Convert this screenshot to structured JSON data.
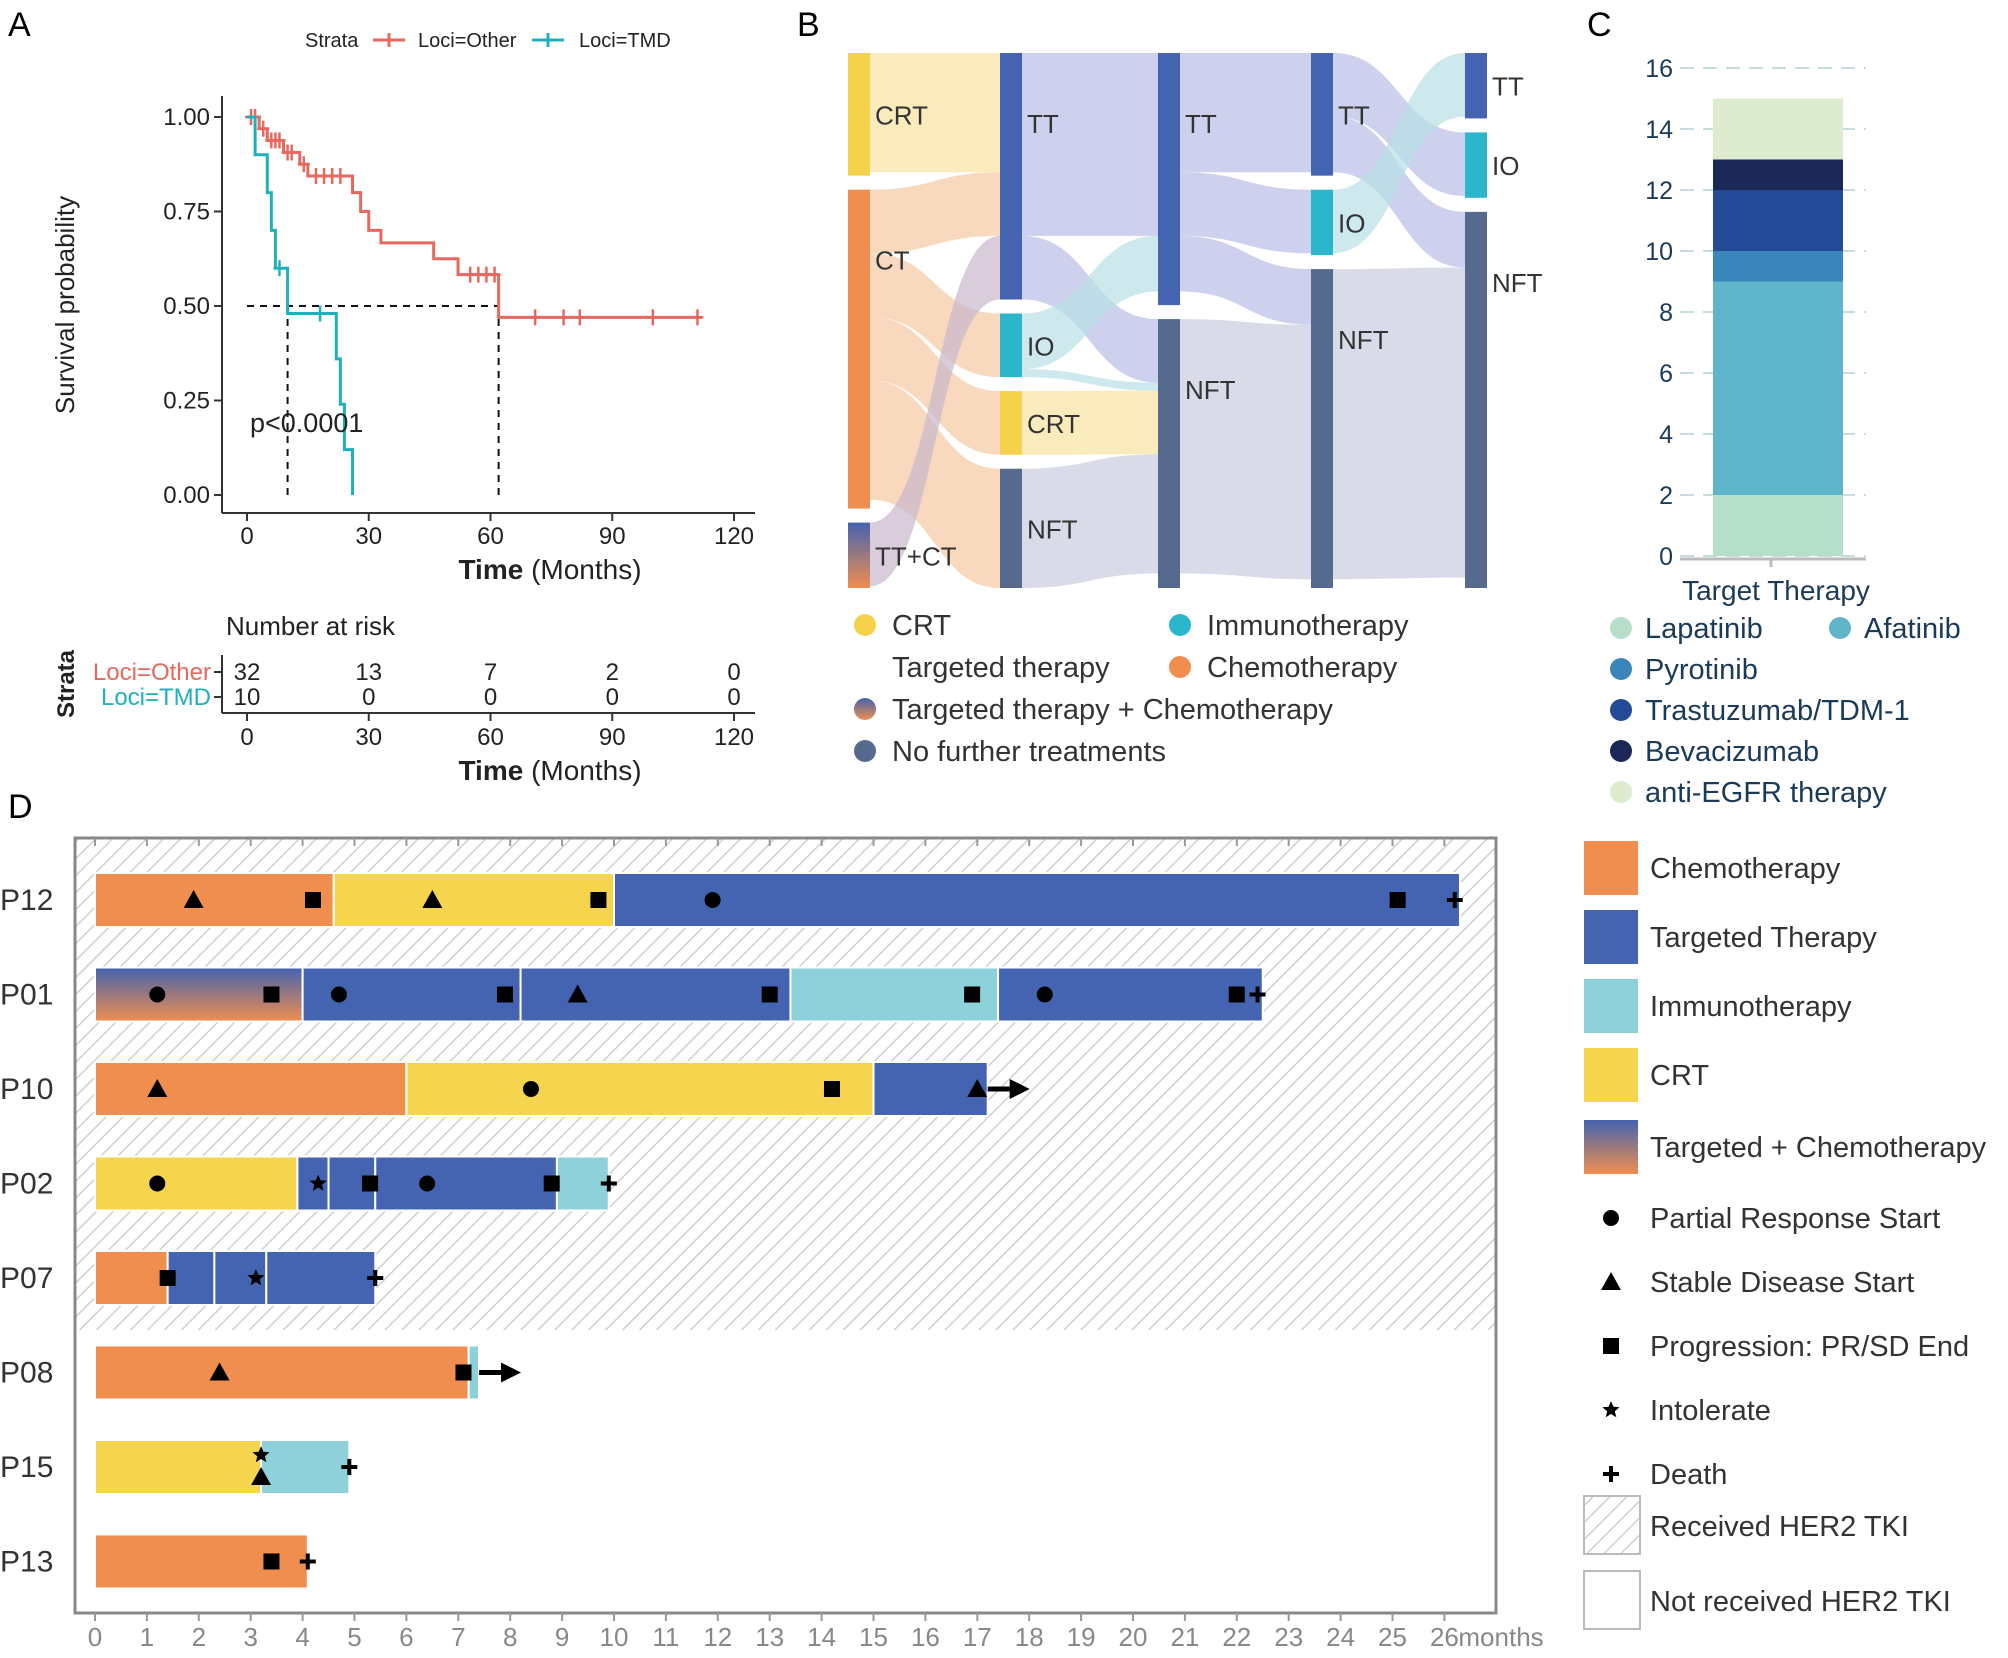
{
  "colors": {
    "other": "#E8685E",
    "tmd": "#1FB1BA",
    "chemo": "#F08E4F",
    "tt": "#4463B0",
    "io": "#8FD1DB",
    "crt": "#F5D44E",
    "nft": "#56698F",
    "nft_flow": "#C9CDDE",
    "tt_flow": "#B9BDE6",
    "io_bar": "#2BB6CC",
    "crt_bar": "#F4D24C",
    "lapatinib": "#B5DFC9",
    "afatinib": "#5FB6CB",
    "pyrotinib": "#3A86BA",
    "trastuzumab": "#224A96",
    "bevacizumab": "#1B2757",
    "antiegfr": "#DDEBCE"
  },
  "panel_labels": {
    "a": "A",
    "b": "B",
    "c": "C",
    "d": "D"
  },
  "chart_data": [
    {
      "panel": "A",
      "type": "line",
      "subtype": "kaplan-meier",
      "legend_title": "Strata",
      "legend_position": "top",
      "xlabel_bold": "Time",
      "xlabel_rest": " (Months)",
      "ylabel": "Survival probability",
      "xlim": [
        0,
        120
      ],
      "ylim": [
        0,
        1
      ],
      "x_ticks": [
        "0",
        "30",
        "60",
        "90",
        "120"
      ],
      "y_ticks": [
        "0.00",
        "0.25",
        "0.50",
        "0.75",
        "1.00"
      ],
      "annotation": "p<0.0001",
      "median_survival": [
        10,
        62
      ],
      "series": [
        {
          "name": "Loci=Other",
          "color_key": "other",
          "steps": [
            [
              0,
              1.0
            ],
            [
              3,
              0.969
            ],
            [
              5,
              0.938
            ],
            [
              9,
              0.906
            ],
            [
              13,
              0.875
            ],
            [
              15,
              0.844
            ],
            [
              26,
              0.8
            ],
            [
              28,
              0.75
            ],
            [
              30,
              0.7
            ],
            [
              33,
              0.667
            ],
            [
              46,
              0.625
            ],
            [
              52,
              0.583
            ],
            [
              62,
              0.47
            ],
            [
              112,
              0.47
            ]
          ],
          "censors": [
            [
              1,
              1.0
            ],
            [
              2,
              1.0
            ],
            [
              4,
              0.969
            ],
            [
              6,
              0.938
            ],
            [
              7,
              0.938
            ],
            [
              8,
              0.938
            ],
            [
              10,
              0.906
            ],
            [
              11,
              0.906
            ],
            [
              14,
              0.875
            ],
            [
              17,
              0.844
            ],
            [
              19,
              0.844
            ],
            [
              21,
              0.844
            ],
            [
              23,
              0.844
            ],
            [
              55,
              0.583
            ],
            [
              57,
              0.583
            ],
            [
              59,
              0.583
            ],
            [
              61,
              0.583
            ],
            [
              71,
              0.47
            ],
            [
              78,
              0.47
            ],
            [
              82,
              0.47
            ],
            [
              100,
              0.47
            ],
            [
              111,
              0.47
            ]
          ]
        },
        {
          "name": "Loci=TMD",
          "color_key": "tmd",
          "steps": [
            [
              0,
              1.0
            ],
            [
              2,
              0.9
            ],
            [
              5,
              0.8
            ],
            [
              6,
              0.7
            ],
            [
              7,
              0.6
            ],
            [
              10,
              0.48
            ],
            [
              22,
              0.36
            ],
            [
              23,
              0.24
            ],
            [
              24,
              0.12
            ],
            [
              26,
              0.0
            ]
          ],
          "censors": [
            [
              8,
              0.6
            ],
            [
              18,
              0.48
            ]
          ]
        }
      ],
      "risk_table": {
        "title": "Number at risk",
        "row_title": "Strata",
        "x": [
          "0",
          "30",
          "60",
          "90",
          "120"
        ],
        "rows": [
          {
            "label": "Loci=Other",
            "color_key": "other",
            "values": [
              "32",
              "13",
              "7",
              "2",
              "0"
            ]
          },
          {
            "label": "Loci=TMD",
            "color_key": "tmd",
            "values": [
              "10",
              "0",
              "0",
              "0",
              "0"
            ]
          }
        ],
        "xlabel_bold": "Time",
        "xlabel_rest": " (Months)"
      }
    },
    {
      "panel": "B",
      "type": "sankey",
      "columns": [
        [
          {
            "id": "crt1",
            "label": "CRT",
            "value": 15,
            "color_key": "crt_bar"
          },
          {
            "id": "ct1",
            "label": "CT",
            "value": 39,
            "color_key": "chemo"
          },
          {
            "id": "ttct1",
            "label": "TT+CT",
            "value": 8,
            "color_key": "gradient"
          }
        ],
        [
          {
            "id": "tt2",
            "label": "TT",
            "value": 31,
            "color_key": "tt"
          },
          {
            "id": "io2",
            "label": "IO",
            "value": 8,
            "color_key": "io_bar"
          },
          {
            "id": "crt2",
            "label": "CRT",
            "value": 8,
            "color_key": "crt_bar"
          },
          {
            "id": "nft2",
            "label": "NFT",
            "value": 15,
            "color_key": "nft"
          }
        ],
        [
          {
            "id": "tt3",
            "label": "TT",
            "value": 30,
            "color_key": "tt"
          },
          {
            "id": "nft3",
            "label": "NFT",
            "value": 32,
            "color_key": "nft"
          }
        ],
        [
          {
            "id": "tt4",
            "label": "TT",
            "value": 15,
            "color_key": "tt"
          },
          {
            "id": "io4",
            "label": "IO",
            "value": 8,
            "color_key": "io_bar"
          },
          {
            "id": "nft4",
            "label": "NFT",
            "value": 39,
            "color_key": "nft"
          }
        ],
        [
          {
            "id": "tt5",
            "label": "TT",
            "value": 8,
            "color_key": "tt"
          },
          {
            "id": "io5",
            "label": "IO",
            "value": 8,
            "color_key": "io_bar"
          },
          {
            "id": "nft5",
            "label": "NFT",
            "value": 46,
            "color_key": "nft"
          }
        ]
      ],
      "links": [
        [
          "crt1",
          "tt2",
          15
        ],
        [
          "ct1",
          "tt2",
          8
        ],
        [
          "ct1",
          "io2",
          8
        ],
        [
          "ct1",
          "crt2",
          8
        ],
        [
          "ct1",
          "nft2",
          15
        ],
        [
          "ttct1",
          "tt2",
          8
        ],
        [
          "tt2",
          "tt3",
          23
        ],
        [
          "tt2",
          "nft3",
          8
        ],
        [
          "io2",
          "tt3",
          7
        ],
        [
          "io2",
          "nft3",
          1
        ],
        [
          "crt2",
          "nft3",
          8
        ],
        [
          "nft2",
          "nft3",
          15
        ],
        [
          "tt3",
          "tt4",
          15
        ],
        [
          "tt3",
          "io4",
          8
        ],
        [
          "tt3",
          "nft4",
          7
        ],
        [
          "nft3",
          "nft4",
          32
        ],
        [
          "tt4",
          "io5",
          8
        ],
        [
          "tt4",
          "nft5",
          7
        ],
        [
          "io4",
          "tt5",
          8
        ],
        [
          "nft4",
          "nft5",
          39
        ]
      ],
      "legend": [
        {
          "label": "CRT",
          "color_key": "crt_bar"
        },
        {
          "label": "Immunotherapy",
          "color_key": "io_bar"
        },
        {
          "label": "Targeted therapy",
          "color_key": "none"
        },
        {
          "label": "Chemotherapy",
          "color_key": "chemo"
        },
        {
          "label": "Targeted therapy + Chemotherapy",
          "color_key": "gradient"
        },
        {
          "label": "No further treatments",
          "color_key": "nft"
        }
      ]
    },
    {
      "panel": "C",
      "type": "bar",
      "subtype": "stacked",
      "categories": [
        "Target Therapy"
      ],
      "ylim": [
        0,
        16
      ],
      "y_ticks": [
        "0",
        "2",
        "4",
        "6",
        "8",
        "10",
        "12",
        "14",
        "16"
      ],
      "series": [
        {
          "name": "Lapatinib",
          "value": 2,
          "color_key": "lapatinib"
        },
        {
          "name": "Afatinib",
          "value": 7,
          "color_key": "afatinib"
        },
        {
          "name": "Pyrotinib",
          "value": 1,
          "color_key": "pyrotinib"
        },
        {
          "name": "Trastuzumab/TDM-1",
          "value": 2,
          "color_key": "trastuzumab"
        },
        {
          "name": "Bevacizumab",
          "value": 1,
          "color_key": "bevacizumab"
        },
        {
          "name": "anti-EGFR therapy",
          "value": 2,
          "color_key": "antiegfr"
        }
      ]
    },
    {
      "panel": "D",
      "type": "swimmer",
      "x_unit": "months",
      "xlim": [
        0,
        27
      ],
      "x_ticks": [
        "0",
        "1",
        "2",
        "3",
        "4",
        "5",
        "6",
        "7",
        "8",
        "9",
        "10",
        "11",
        "12",
        "13",
        "14",
        "15",
        "16",
        "17",
        "18",
        "19",
        "20",
        "21",
        "22",
        "23",
        "24",
        "25",
        "26"
      ],
      "hatched_patients": 5,
      "patients": [
        {
          "id": "P12",
          "segments": [
            [
              "chemo",
              0,
              4.6
            ],
            [
              "crt",
              4.6,
              10
            ],
            [
              "tt",
              10,
              26.3
            ]
          ],
          "events": [
            [
              "tri",
              1.9
            ],
            [
              "sq",
              4.2
            ],
            [
              "tri",
              6.5
            ],
            [
              "sq",
              9.7
            ],
            [
              "circle",
              11.9
            ],
            [
              "sq",
              25.1
            ],
            [
              "plus",
              26.2
            ]
          ]
        },
        {
          "id": "P01",
          "segments": [
            [
              "gradient",
              0,
              4.0
            ],
            [
              "tt",
              4.0,
              8.2
            ],
            [
              "tt",
              8.2,
              13.4
            ],
            [
              "io",
              13.4,
              17.4
            ],
            [
              "tt",
              17.4,
              22.5
            ]
          ],
          "events": [
            [
              "circle",
              1.2
            ],
            [
              "sq",
              3.4
            ],
            [
              "circle",
              4.7
            ],
            [
              "sq",
              7.9
            ],
            [
              "tri",
              9.3
            ],
            [
              "sq",
              13.0
            ],
            [
              "sq",
              16.9
            ],
            [
              "circle",
              18.3
            ],
            [
              "sq",
              22.0
            ],
            [
              "plus",
              22.4
            ]
          ]
        },
        {
          "id": "P10",
          "segments": [
            [
              "chemo",
              0,
              6.0
            ],
            [
              "crt",
              6.0,
              15.0
            ],
            [
              "tt",
              15.0,
              17.2
            ]
          ],
          "events": [
            [
              "tri",
              1.2
            ],
            [
              "circle",
              8.4
            ],
            [
              "sq",
              14.2
            ],
            [
              "tri",
              17.0
            ],
            [
              "arrow",
              17.2
            ]
          ]
        },
        {
          "id": "P02",
          "segments": [
            [
              "crt",
              0,
              3.9
            ],
            [
              "tt",
              3.9,
              4.5
            ],
            [
              "tt",
              4.5,
              5.4
            ],
            [
              "tt",
              5.4,
              8.9
            ],
            [
              "io",
              8.9,
              9.9
            ]
          ],
          "events": [
            [
              "circle",
              1.2
            ],
            [
              "star",
              4.3
            ],
            [
              "sq",
              5.3
            ],
            [
              "circle",
              6.4
            ],
            [
              "sq",
              8.8
            ],
            [
              "plus",
              9.9
            ]
          ]
        },
        {
          "id": "P07",
          "segments": [
            [
              "chemo",
              0,
              1.4
            ],
            [
              "tt",
              1.4,
              2.3
            ],
            [
              "tt",
              2.3,
              3.3
            ],
            [
              "tt",
              3.3,
              5.4
            ]
          ],
          "events": [
            [
              "sq",
              1.4
            ],
            [
              "star",
              3.1
            ],
            [
              "plus",
              5.4
            ]
          ]
        },
        {
          "id": "P08",
          "segments": [
            [
              "chemo",
              0,
              7.2
            ],
            [
              "io",
              7.2,
              7.4
            ]
          ],
          "events": [
            [
              "tri",
              2.4
            ],
            [
              "sq",
              7.1
            ],
            [
              "arrow",
              7.4
            ]
          ]
        },
        {
          "id": "P15",
          "segments": [
            [
              "crt",
              0,
              3.2
            ],
            [
              "io",
              3.2,
              4.9
            ]
          ],
          "events": [
            [
              "startri",
              3.2
            ],
            [
              "plus",
              4.9
            ]
          ]
        },
        {
          "id": "P13",
          "segments": [
            [
              "chemo",
              0,
              4.1
            ]
          ],
          "events": [
            [
              "sq",
              3.4
            ],
            [
              "plus",
              4.1
            ]
          ]
        }
      ],
      "legend_bars": [
        {
          "label": "Chemotherapy",
          "color_key": "chemo"
        },
        {
          "label": "Targeted Therapy",
          "color_key": "tt"
        },
        {
          "label": "Immunotherapy",
          "color_key": "io"
        },
        {
          "label": "CRT",
          "color_key": "crt"
        },
        {
          "label": "Targeted + Chemotherapy",
          "color_key": "gradient"
        }
      ],
      "legend_events": [
        {
          "label": "Partial Response Start",
          "shape": "circle"
        },
        {
          "label": "Stable Disease Start",
          "shape": "tri"
        },
        {
          "label": "Progression: PR/SD End",
          "shape": "sq"
        },
        {
          "label": "Intolerate",
          "shape": "star"
        },
        {
          "label": "Death",
          "shape": "plus"
        }
      ],
      "legend_fills": [
        {
          "label": "Received HER2 TKI",
          "pattern": "hatch"
        },
        {
          "label": "Not received HER2 TKI",
          "pattern": "blank"
        }
      ]
    }
  ]
}
